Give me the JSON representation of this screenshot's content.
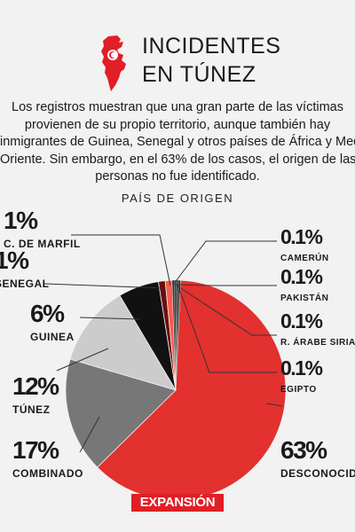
{
  "header": {
    "title_line1": "INCIDENTES",
    "title_line2": "EN TÚNEZ",
    "description_lines": [
      "Los registros muestran que una gran parte de las víctimas",
      "provienen de su propio territorio, aunque también hay",
      "inmigrantes de Guinea, Senegal y otros países de África y Medio",
      "Oriente. Sin embargo, en el 63% de los casos, el origen de las",
      "personas no fue identificado."
    ]
  },
  "colors": {
    "desconocido": "#e2312f",
    "combinado": "#777777",
    "tunez": "#cccccc",
    "guinea": "#111111",
    "senegal": "#6b0e12",
    "costa_marfil": "#ff5a4a",
    "small": "#333333",
    "line": "#333333"
  },
  "chart_data": {
    "type": "pie",
    "title": "PAÍS DE ORIGEN",
    "slices": [
      {
        "label": "DESCONOCIDO",
        "value": 63,
        "value_label": "63%"
      },
      {
        "label": "COMBINADO",
        "value": 17,
        "value_label": "17%"
      },
      {
        "label": "TÚNEZ",
        "value": 12,
        "value_label": "12%"
      },
      {
        "label": "GUINEA",
        "value": 6,
        "value_label": "6%"
      },
      {
        "label": "SENEGAL",
        "value": 1,
        "value_label": "1%"
      },
      {
        "label": "C. DE MARFIL",
        "value": 1,
        "value_label": "1%"
      },
      {
        "label": "EGIPTO",
        "value": 0.1,
        "value_label": "0.1%"
      },
      {
        "label": "R. ÁRABE SIRIA",
        "value": 0.1,
        "value_label": "0.1%"
      },
      {
        "label": "PAKISTÁN",
        "value": 0.1,
        "value_label": "0.1%"
      },
      {
        "label": "CAMERÚN",
        "value": 0.1,
        "value_label": "0.1%"
      }
    ]
  },
  "brand": {
    "logo_text": "EXPANSIÓN"
  }
}
